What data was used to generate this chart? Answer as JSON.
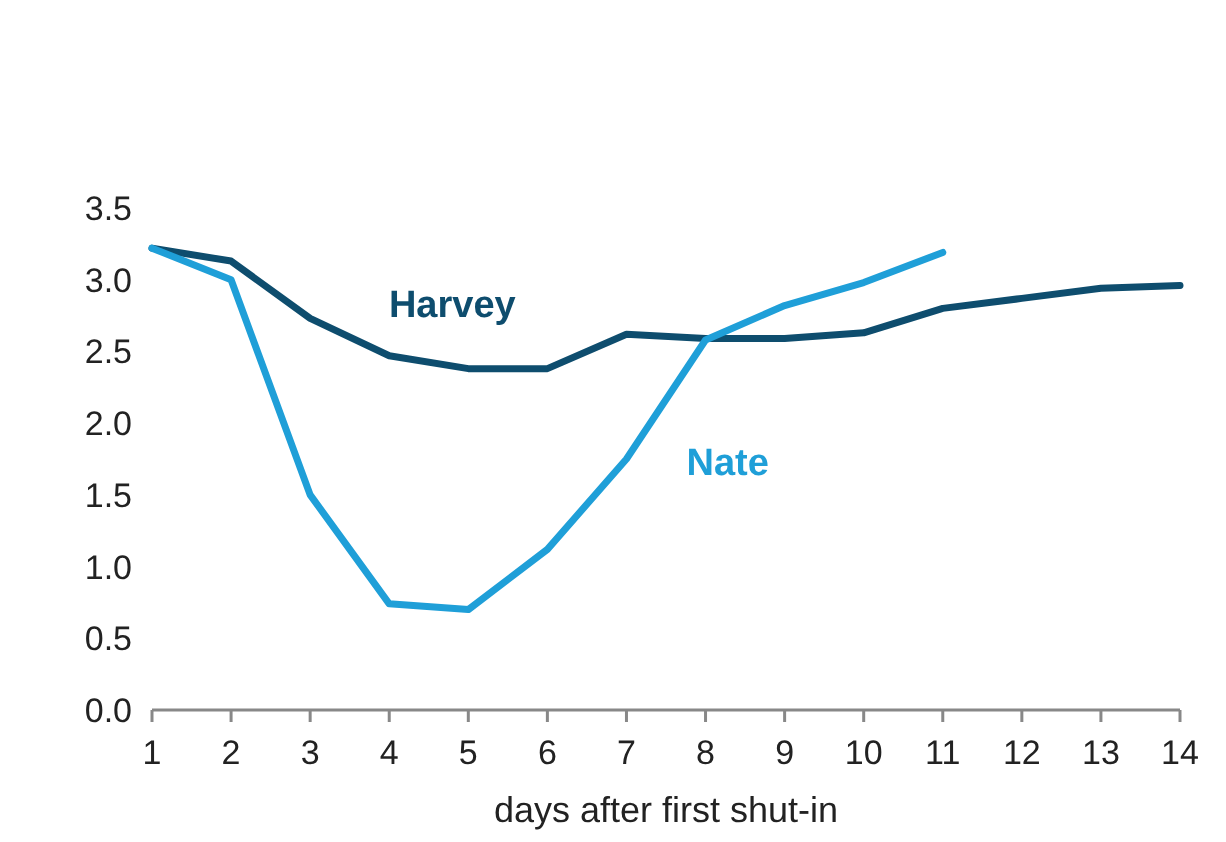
{
  "chart_data": {
    "type": "line",
    "xlabel": "days after first shut-in",
    "x": [
      1,
      2,
      3,
      4,
      5,
      6,
      7,
      8,
      9,
      10,
      11,
      12,
      13,
      14
    ],
    "xlim": [
      1,
      14
    ],
    "xticks": [
      1,
      2,
      3,
      4,
      5,
      6,
      7,
      8,
      9,
      10,
      11,
      12,
      13,
      14
    ],
    "ylim": [
      0,
      3.5
    ],
    "yticks": [
      {
        "value": 0,
        "label": "0.0"
      },
      {
        "value": 0.5,
        "label": "0.5"
      },
      {
        "value": 1,
        "label": "1.0"
      },
      {
        "value": 1.5,
        "label": "1.5"
      },
      {
        "value": 2,
        "label": "2.0"
      },
      {
        "value": 2.5,
        "label": "2.5"
      },
      {
        "value": 3,
        "label": "3.0"
      },
      {
        "value": 3.5,
        "label": "3.5"
      }
    ],
    "grid": false,
    "series": [
      {
        "name": "Harvey",
        "color": "#0e4d6e",
        "values": [
          3.22,
          3.13,
          2.73,
          2.47,
          2.38,
          2.38,
          2.62,
          2.59,
          2.59,
          2.63,
          2.8,
          2.87,
          2.94,
          2.96
        ]
      },
      {
        "name": "Nate",
        "color": "#1f9fd8",
        "values": [
          3.22,
          3.0,
          1.5,
          0.74,
          0.7,
          1.12,
          1.75,
          2.58,
          2.82,
          2.98,
          3.19,
          null,
          null,
          null
        ]
      }
    ]
  }
}
